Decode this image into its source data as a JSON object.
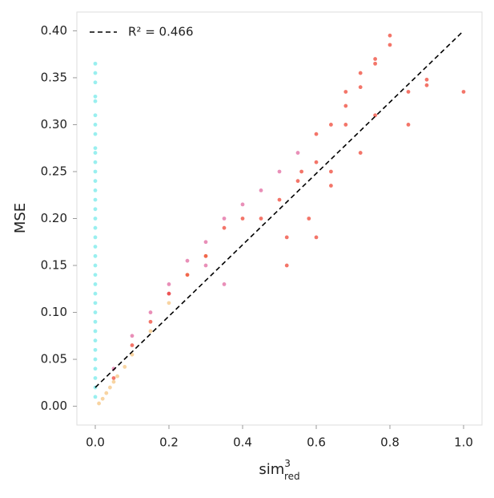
{
  "chart_data": {
    "type": "scatter",
    "ylabel": "MSE",
    "xlabel": {
      "base": "sim",
      "sup": "3",
      "sub": "red"
    },
    "xlim": [
      -0.05,
      1.05
    ],
    "xticks": [
      {
        "value": 0,
        "label": "0.0"
      },
      {
        "value": 0.2,
        "label": "0.2"
      },
      {
        "value": 0.4,
        "label": "0.4"
      },
      {
        "value": 0.6,
        "label": "0.6"
      },
      {
        "value": 0.8,
        "label": "0.8"
      },
      {
        "value": 1,
        "label": "1.0"
      }
    ],
    "ylim": [
      -0.02,
      0.42
    ],
    "yticks": [
      {
        "value": 0,
        "label": "0.00"
      },
      {
        "value": 0.05,
        "label": "0.05"
      },
      {
        "value": 0.1,
        "label": "0.10"
      },
      {
        "value": 0.15,
        "label": "0.15"
      },
      {
        "value": 0.2,
        "label": "0.20"
      },
      {
        "value": 0.25,
        "label": "0.25"
      },
      {
        "value": 0.3,
        "label": "0.30"
      },
      {
        "value": 0.35,
        "label": "0.35"
      },
      {
        "value": 0.4,
        "label": "0.40"
      }
    ],
    "legend": "upper left",
    "series": [
      {
        "color": "#33e0e0",
        "x": [
          0,
          0,
          0,
          0,
          0,
          0,
          0,
          0,
          0,
          0,
          0,
          0,
          0,
          0,
          0,
          0,
          0,
          0,
          0,
          0,
          0,
          0,
          0,
          0,
          0,
          0,
          0,
          0,
          0,
          0,
          0,
          0,
          0,
          0,
          0,
          0
        ],
        "values": [
          0.365,
          0.355,
          0.345,
          0.33,
          0.325,
          0.31,
          0.3,
          0.29,
          0.275,
          0.27,
          0.26,
          0.25,
          0.24,
          0.23,
          0.22,
          0.21,
          0.2,
          0.19,
          0.18,
          0.17,
          0.16,
          0.15,
          0.14,
          0.13,
          0.12,
          0.11,
          0.1,
          0.09,
          0.08,
          0.07,
          0.06,
          0.05,
          0.04,
          0.03,
          0.02,
          0.01
        ]
      },
      {
        "color": "#f5c27a",
        "x": [
          0.01,
          0.02,
          0.03,
          0.04,
          0.05,
          0.06,
          0.08,
          0.1,
          0.15,
          0.2,
          0.25,
          0.3
        ],
        "values": [
          0.003,
          0.008,
          0.014,
          0.02,
          0.026,
          0.032,
          0.042,
          0.055,
          0.08,
          0.11,
          0.14,
          0.16
        ]
      },
      {
        "color": "#e0609a",
        "x": [
          0.05,
          0.1,
          0.15,
          0.2,
          0.25,
          0.3,
          0.35,
          0.4,
          0.45,
          0.5,
          0.55,
          0.2,
          0.3,
          0.35
        ],
        "values": [
          0.04,
          0.075,
          0.1,
          0.13,
          0.155,
          0.175,
          0.2,
          0.215,
          0.23,
          0.25,
          0.27,
          0.12,
          0.15,
          0.13
        ]
      },
      {
        "color": "#ee3a2a",
        "x": [
          0.05,
          0.1,
          0.15,
          0.2,
          0.25,
          0.3,
          0.35,
          0.4,
          0.45,
          0.5,
          0.55,
          0.6,
          0.6,
          0.6,
          0.64,
          0.64,
          0.68,
          0.68,
          0.72,
          0.72,
          0.72,
          0.76,
          0.76,
          0.76,
          0.8,
          0.8,
          0.85,
          0.85,
          0.9,
          0.9,
          1.0,
          0.52,
          0.52,
          0.56,
          0.58,
          0.64,
          0.68
        ],
        "values": [
          0.03,
          0.065,
          0.09,
          0.12,
          0.14,
          0.16,
          0.19,
          0.2,
          0.2,
          0.22,
          0.24,
          0.26,
          0.29,
          0.18,
          0.25,
          0.3,
          0.32,
          0.335,
          0.27,
          0.355,
          0.34,
          0.37,
          0.31,
          0.365,
          0.395,
          0.385,
          0.3,
          0.335,
          0.348,
          0.342,
          0.335,
          0.15,
          0.18,
          0.25,
          0.2,
          0.235,
          0.3
        ]
      }
    ],
    "fit": {
      "name": "R² = 0.466",
      "color": "#000000",
      "x": [
        0,
        1
      ],
      "values": [
        0.02,
        0.4
      ]
    }
  }
}
